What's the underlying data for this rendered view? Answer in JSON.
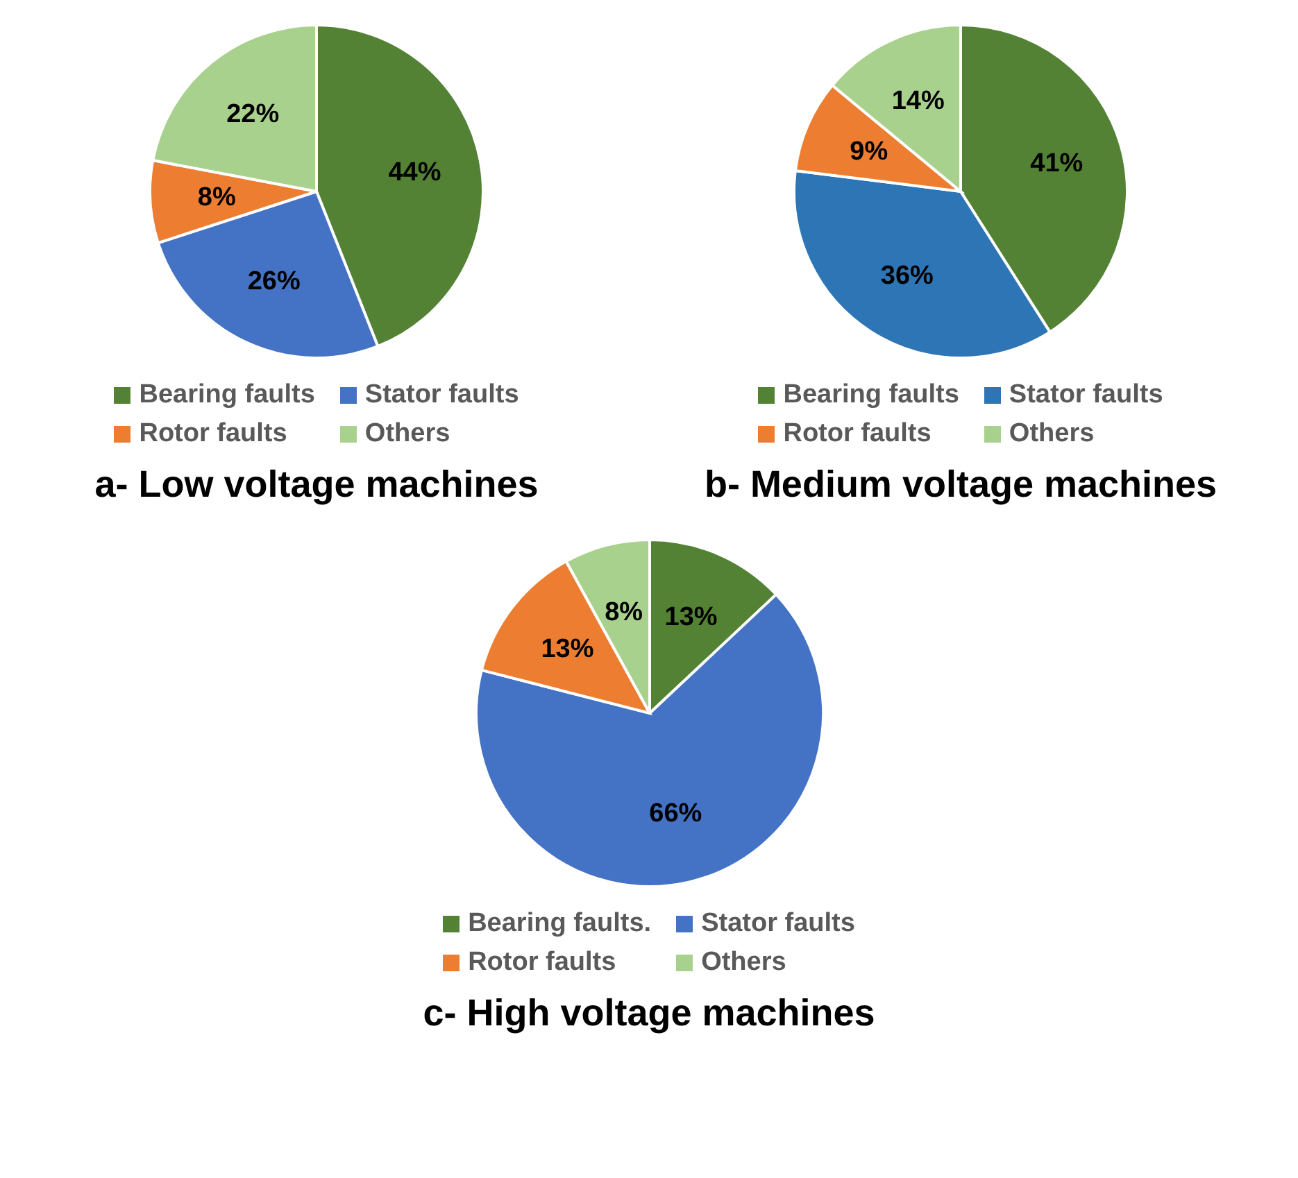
{
  "chart_data": [
    {
      "type": "pie",
      "title": "a- Low voltage machines",
      "categories": [
        "Bearing faults",
        "Stator faults",
        "Rotor faults",
        "Others"
      ],
      "values": [
        44,
        26,
        8,
        22
      ],
      "value_labels": [
        "44%",
        "26%",
        "8%",
        "22%"
      ],
      "colors": [
        "#548235",
        "#4472c4",
        "#ed7d31",
        "#a9d18e"
      ],
      "legend": "bottom"
    },
    {
      "type": "pie",
      "title": "b- Medium voltage machines",
      "categories": [
        "Bearing faults",
        "Stator faults",
        "Rotor faults",
        "Others"
      ],
      "values": [
        41,
        36,
        9,
        14
      ],
      "value_labels": [
        "41%",
        "36%",
        "9%",
        "14%"
      ],
      "colors": [
        "#548235",
        "#2e75b6",
        "#ed7d31",
        "#a9d18e"
      ],
      "legend": "bottom"
    },
    {
      "type": "pie",
      "title": "c- High voltage machines",
      "categories": [
        "Bearing faults.",
        "Stator faults",
        "Rotor faults",
        "Others"
      ],
      "values": [
        13,
        66,
        13,
        8
      ],
      "value_labels": [
        "13%",
        "66%",
        "13%",
        "8%"
      ],
      "colors": [
        "#548235",
        "#4472c4",
        "#ed7d31",
        "#a9d18e"
      ],
      "legend": "bottom"
    }
  ]
}
